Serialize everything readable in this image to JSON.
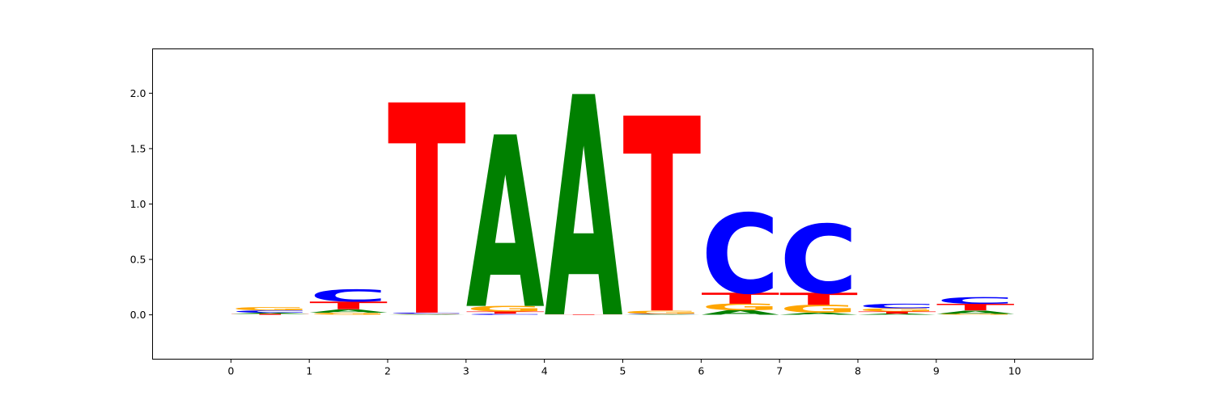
{
  "chart_data": {
    "type": "sequence-logo",
    "title": "",
    "xlabel": "",
    "ylabel": "",
    "xlim": [
      -1,
      11
    ],
    "ylim": [
      -0.4,
      2.4
    ],
    "xticks": [
      "0",
      "1",
      "2",
      "3",
      "4",
      "5",
      "6",
      "7",
      "8",
      "9",
      "10"
    ],
    "yticks": [
      "0.0",
      "0.5",
      "1.0",
      "1.5",
      "2.0"
    ],
    "grid": false,
    "colors": {
      "A": "#008000",
      "C": "#0000ff",
      "G": "#ffa500",
      "T": "#ff0000"
    },
    "positions": [
      {
        "x": 0,
        "letters": [
          {
            "base": "T",
            "height": 0.01
          },
          {
            "base": "A",
            "height": 0.01
          },
          {
            "base": "C",
            "height": 0.02
          },
          {
            "base": "G",
            "height": 0.03
          }
        ]
      },
      {
        "x": 1,
        "letters": [
          {
            "base": "G",
            "height": 0.02
          },
          {
            "base": "A",
            "height": 0.03
          },
          {
            "base": "T",
            "height": 0.07
          },
          {
            "base": "C",
            "height": 0.11
          }
        ]
      },
      {
        "x": 2,
        "letters": [
          {
            "base": "A",
            "height": 0.005
          },
          {
            "base": "G",
            "height": 0.005
          },
          {
            "base": "C",
            "height": 0.01
          },
          {
            "base": "T",
            "height": 1.9
          }
        ]
      },
      {
        "x": 3,
        "letters": [
          {
            "base": "C",
            "height": 0.01
          },
          {
            "base": "T",
            "height": 0.02
          },
          {
            "base": "G",
            "height": 0.05
          },
          {
            "base": "A",
            "height": 1.55
          }
        ]
      },
      {
        "x": 4,
        "letters": [
          {
            "base": "T",
            "height": 0.005
          },
          {
            "base": "A",
            "height": 1.99
          }
        ]
      },
      {
        "x": 5,
        "letters": [
          {
            "base": "A",
            "height": 0.005
          },
          {
            "base": "C",
            "height": 0.005
          },
          {
            "base": "G",
            "height": 0.03
          },
          {
            "base": "T",
            "height": 1.76
          }
        ]
      },
      {
        "x": 6,
        "letters": [
          {
            "base": "A",
            "height": 0.04
          },
          {
            "base": "G",
            "height": 0.06
          },
          {
            "base": "T",
            "height": 0.1
          },
          {
            "base": "C",
            "height": 0.72
          }
        ]
      },
      {
        "x": 7,
        "letters": [
          {
            "base": "A",
            "height": 0.02
          },
          {
            "base": "G",
            "height": 0.07
          },
          {
            "base": "T",
            "height": 0.11
          },
          {
            "base": "C",
            "height": 0.62
          }
        ]
      },
      {
        "x": 8,
        "letters": [
          {
            "base": "A",
            "height": 0.01
          },
          {
            "base": "T",
            "height": 0.02
          },
          {
            "base": "G",
            "height": 0.03
          },
          {
            "base": "C",
            "height": 0.04
          }
        ]
      },
      {
        "x": 9,
        "letters": [
          {
            "base": "G",
            "height": 0.01
          },
          {
            "base": "A",
            "height": 0.03
          },
          {
            "base": "T",
            "height": 0.06
          },
          {
            "base": "C",
            "height": 0.06
          }
        ]
      }
    ]
  }
}
